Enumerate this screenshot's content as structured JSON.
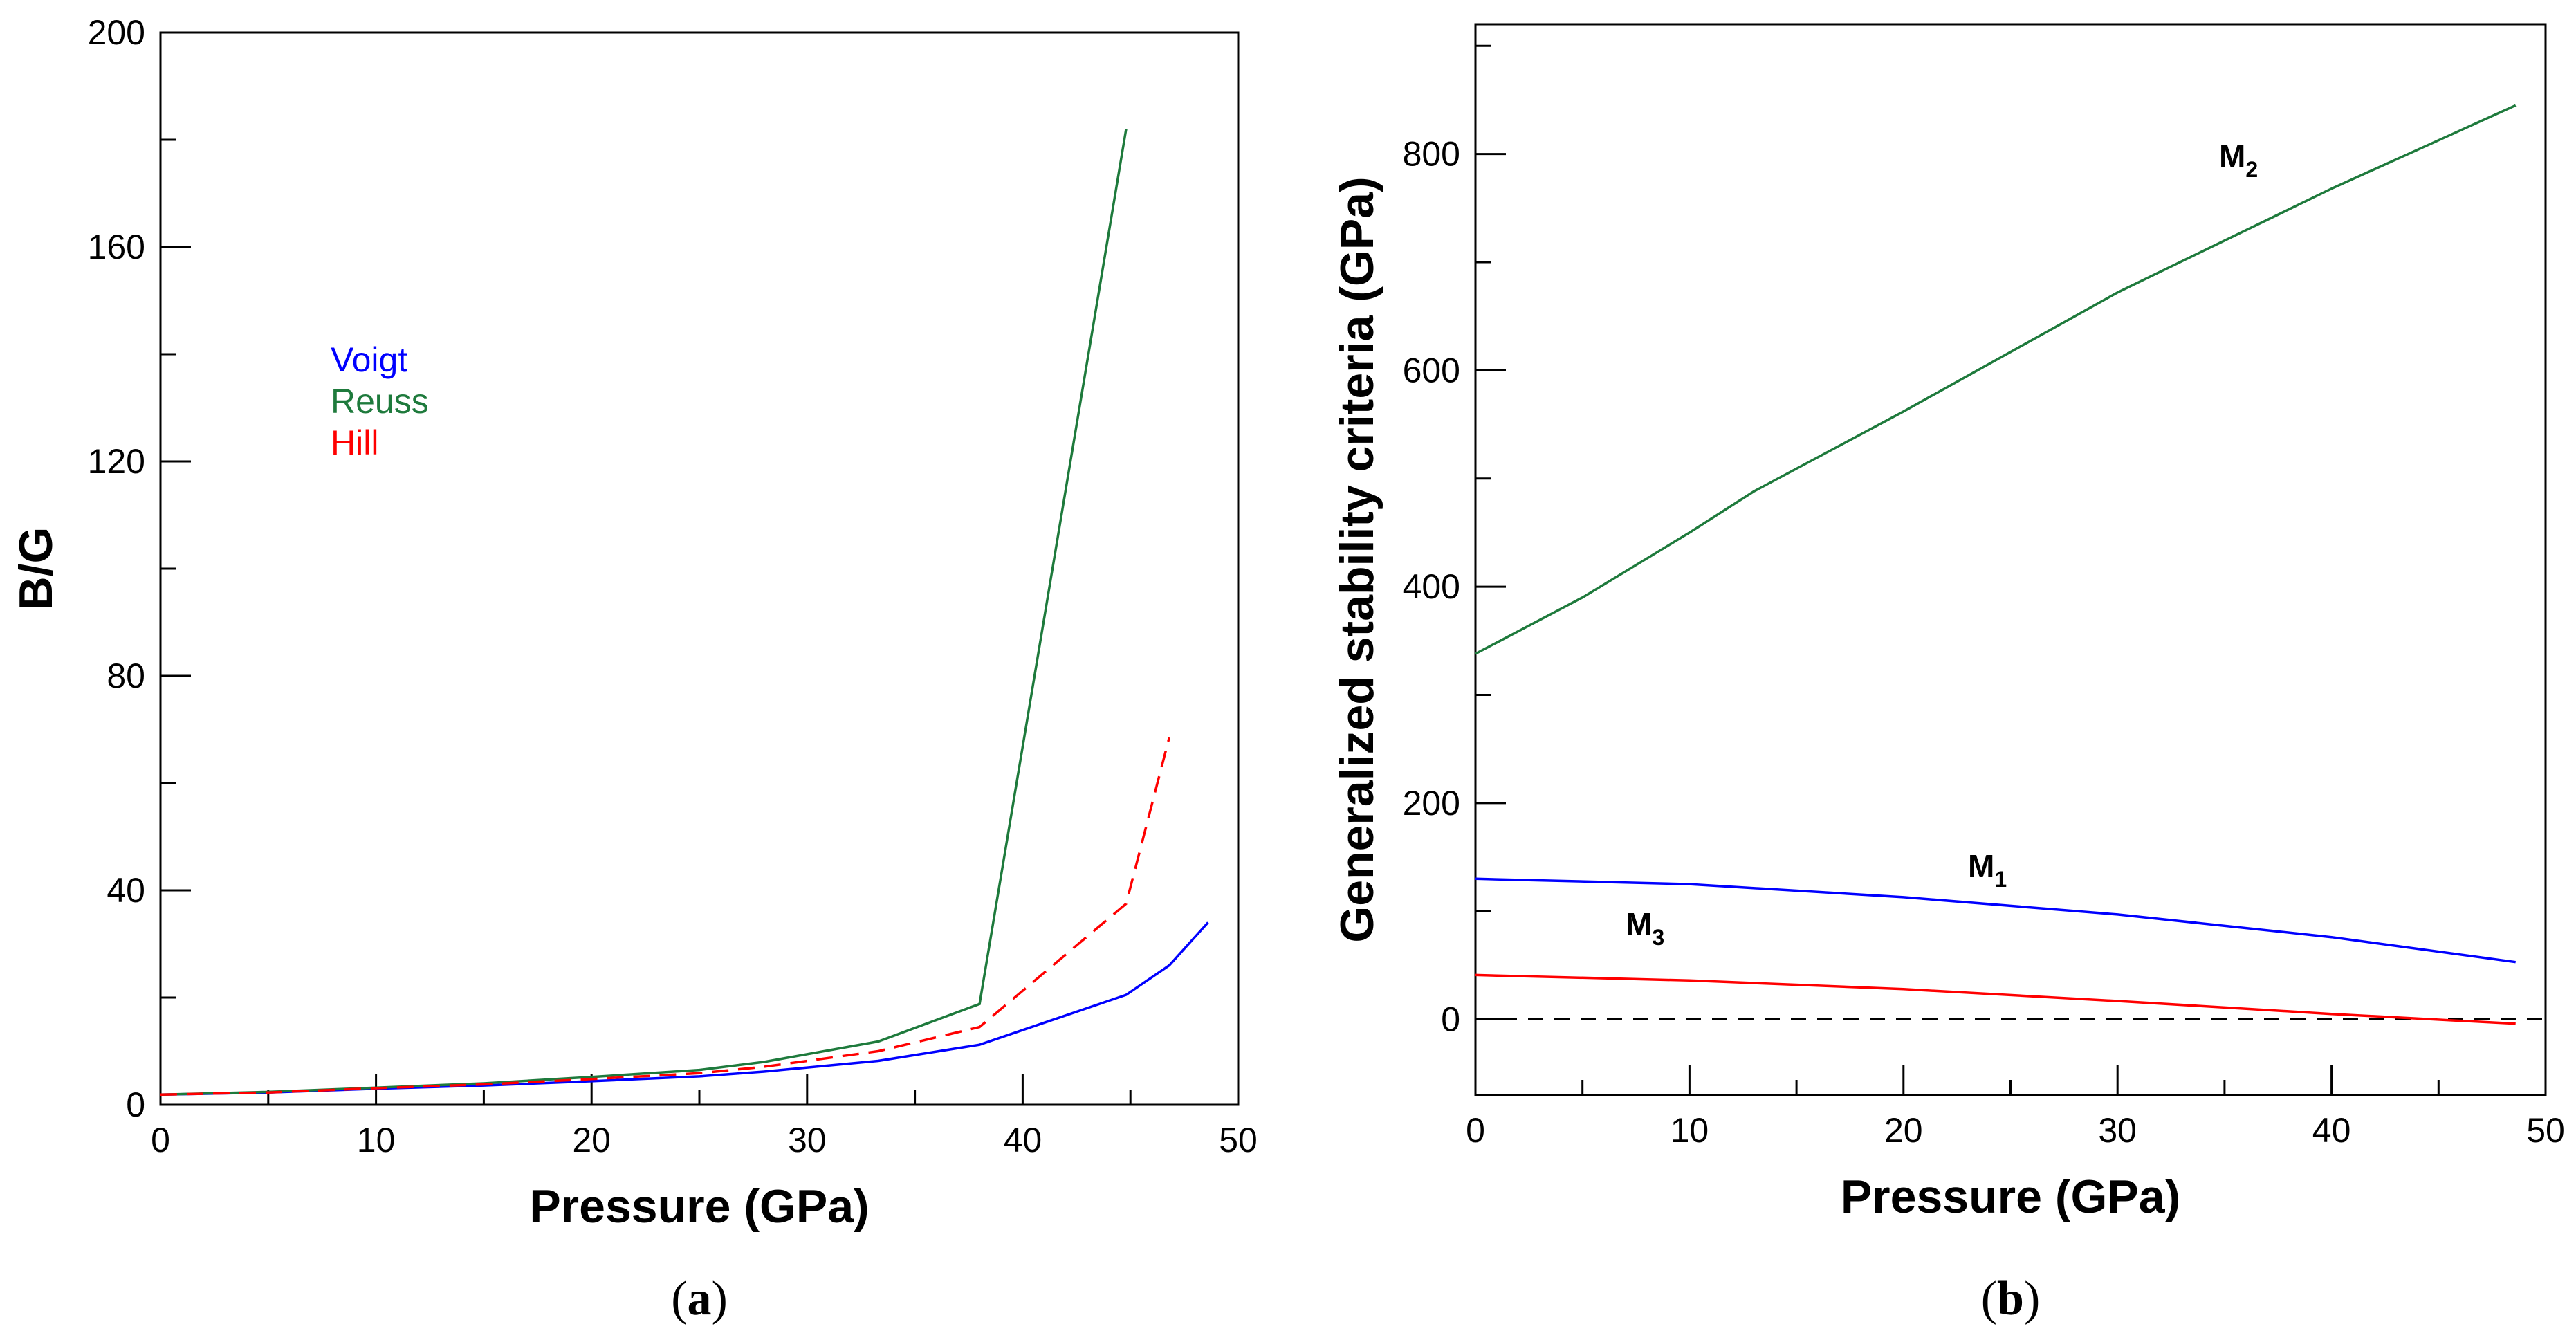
{
  "chart_data": [
    {
      "type": "line",
      "panel_label": "(a)",
      "panel_letter": "a",
      "xlabel": "Pressure (GPa)",
      "ylabel": "B/G",
      "xlim": [
        0,
        50
      ],
      "ylim": [
        0,
        200
      ],
      "x_ticks": [
        0,
        10,
        20,
        30,
        40,
        50
      ],
      "y_ticks": [
        0,
        40,
        80,
        120,
        160,
        200
      ],
      "grid": false,
      "legend_position": "upper-left",
      "series": [
        {
          "name": "Voigt",
          "color": "#0000ff",
          "dash": "solid",
          "x": [
            0,
            5,
            10,
            15,
            20,
            25,
            28,
            33.3,
            38,
            44.8,
            46.8,
            48.6
          ],
          "y": [
            1.9,
            2.3,
            3.0,
            3.6,
            4.4,
            5.3,
            6.2,
            8.2,
            11.2,
            20.5,
            26,
            34
          ]
        },
        {
          "name": "Reuss",
          "color": "#1e7a3c",
          "dash": "solid",
          "x": [
            0,
            5,
            10,
            15,
            20,
            25,
            28,
            33.3,
            38,
            44.8
          ],
          "y": [
            1.9,
            2.4,
            3.2,
            4.0,
            5.2,
            6.5,
            8.0,
            11.8,
            18.8,
            182
          ]
        },
        {
          "name": "Hill",
          "color": "#ff0000",
          "dash": "dashed",
          "x": [
            0,
            5,
            10,
            15,
            20,
            25,
            28,
            33.3,
            38,
            44.8,
            46.8
          ],
          "y": [
            1.9,
            2.3,
            3.1,
            3.8,
            4.8,
            5.9,
            7.1,
            10.0,
            14.5,
            37.5,
            68.5
          ]
        }
      ]
    },
    {
      "type": "line",
      "panel_label": "(b)",
      "panel_letter": "b",
      "xlabel": "Pressure (GPa)",
      "ylabel": "Generalized stability criteria (GPa)",
      "xlim": [
        0,
        50
      ],
      "ylim": [
        -70,
        920
      ],
      "x_ticks": [
        0,
        10,
        20,
        30,
        40,
        50
      ],
      "y_ticks": [
        0,
        200,
        400,
        600,
        800
      ],
      "grid": false,
      "reference_line": {
        "y": 0,
        "style": "dashed",
        "color": "#000000"
      },
      "series": [
        {
          "name": "M",
          "subscript": "2",
          "color": "#1e7a3c",
          "dash": "solid",
          "x": [
            0,
            5,
            10,
            13,
            20,
            30,
            40,
            48.6
          ],
          "y": [
            338,
            390,
            450,
            488,
            562,
            672,
            768,
            845
          ]
        },
        {
          "name": "M",
          "subscript": "1",
          "color": "#0000ff",
          "dash": "solid",
          "x": [
            0,
            10,
            20,
            30,
            40,
            48.6
          ],
          "y": [
            130,
            125,
            113,
            97,
            76,
            53
          ]
        },
        {
          "name": "M",
          "subscript": "3",
          "color": "#ff0000",
          "dash": "solid",
          "x": [
            0,
            10,
            20,
            30,
            40,
            48.6
          ],
          "y": [
            41,
            36,
            28,
            17,
            5,
            -4
          ]
        }
      ]
    }
  ]
}
